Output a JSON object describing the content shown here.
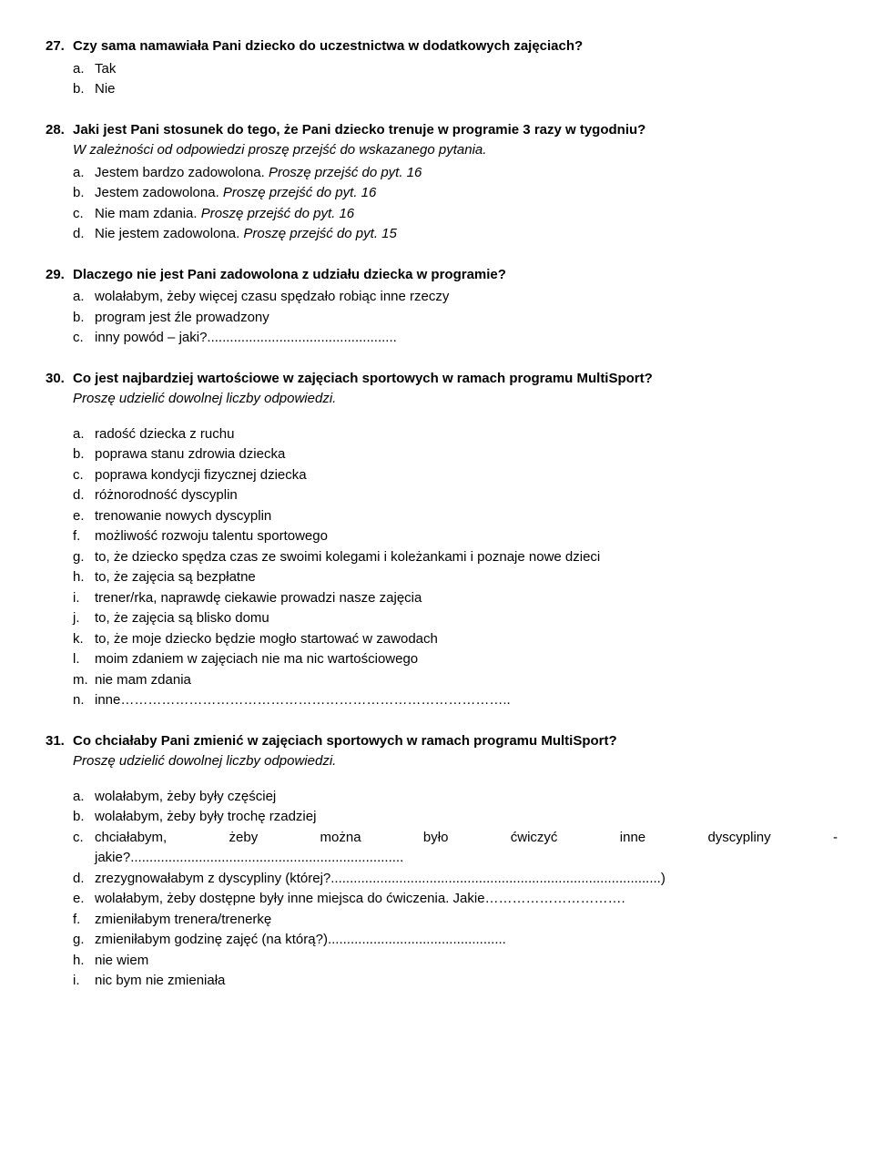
{
  "q27": {
    "num": "27.",
    "text": "Czy sama namawiała Pani dziecko do uczestnictwa w dodatkowych zajęciach?",
    "opts": [
      {
        "l": "a.",
        "t": "Tak"
      },
      {
        "l": "b.",
        "t": "Nie"
      }
    ]
  },
  "q28": {
    "num": "28.",
    "text": "Jaki jest Pani stosunek do tego, że Pani dziecko trenuje w programie 3 razy w tygodniu?",
    "instr": "W zależności od odpowiedzi proszę przejść do wskazanego pytania.",
    "opts": [
      {
        "l": "a.",
        "t": "Jestem bardzo zadowolona. ",
        "i": "Proszę przejść do pyt. 16"
      },
      {
        "l": "b.",
        "t": "Jestem zadowolona. ",
        "i": "Proszę przejść do pyt. 16"
      },
      {
        "l": "c.",
        "t": "Nie mam zdania. ",
        "i": "Proszę przejść do pyt. 16"
      },
      {
        "l": "d.",
        "t": "Nie jestem zadowolona. ",
        "i": "Proszę przejść do pyt. 15"
      }
    ]
  },
  "q29": {
    "num": "29.",
    "text": "Dlaczego nie jest Pani zadowolona z udziału dziecka w programie?",
    "opts": [
      {
        "l": "a.",
        "t": "wolałabym, żeby więcej czasu spędzało robiąc inne rzeczy"
      },
      {
        "l": "b.",
        "t": "program jest źle prowadzony"
      },
      {
        "l": "c.",
        "t": "inny powód – jaki?.................................................."
      }
    ]
  },
  "q30": {
    "num": "30.",
    "text": "Co jest najbardziej wartościowe w zajęciach sportowych w ramach programu MultiSport?",
    "instr": "Proszę udzielić dowolnej liczby odpowiedzi.",
    "opts": [
      {
        "l": "a.",
        "t": "radość dziecka z ruchu"
      },
      {
        "l": "b.",
        "t": "poprawa stanu zdrowia dziecka"
      },
      {
        "l": "c.",
        "t": "poprawa kondycji fizycznej dziecka"
      },
      {
        "l": "d.",
        "t": "różnorodność dyscyplin"
      },
      {
        "l": "e.",
        "t": "trenowanie nowych dyscyplin"
      },
      {
        "l": "f.",
        "t": "możliwość rozwoju talentu sportowego"
      },
      {
        "l": "g.",
        "t": "to, że dziecko spędza czas ze swoimi kolegami i koleżankami i poznaje nowe dzieci"
      },
      {
        "l": "h.",
        "t": "to, że zajęcia są bezpłatne"
      },
      {
        "l": "i.",
        "t": "trener/rka, naprawdę ciekawie prowadzi nasze zajęcia"
      },
      {
        "l": "j.",
        "t": "to, że zajęcia są blisko domu"
      },
      {
        "l": "k.",
        "t": "to, że moje dziecko będzie mogło startować w zawodach"
      },
      {
        "l": "l.",
        "t": "moim zdaniem w zajęciach nie ma nic wartościowego"
      },
      {
        "l": "m.",
        "t": "nie mam zdania"
      },
      {
        "l": "n.",
        "t": "inne………………………………………………………………………….."
      }
    ]
  },
  "q31": {
    "num": "31.",
    "text": "Co chciałaby Pani zmienić w zajęciach sportowych w ramach programu MultiSport?",
    "instr": "Proszę udzielić dowolnej liczby odpowiedzi.",
    "opts_simple": [
      {
        "l": "a.",
        "t": "wolałabym, żeby były częściej"
      },
      {
        "l": "b.",
        "t": "wolałabym, żeby były trochę rzadziej"
      }
    ],
    "opt_c": {
      "l": "c.",
      "w1": "chciałabym,",
      "w2": "żeby",
      "w3": "można",
      "w4": "było",
      "w5": "ćwiczyć",
      "w6": "inne",
      "w7": "dyscypliny",
      "w8": "-",
      "line2": "jakie?........................................................................"
    },
    "opt_d": {
      "l": "d.",
      "t": "zrezygnowałabym z dyscypliny (której?.......................................................................................)"
    },
    "opt_e": {
      "l": "e.",
      "t": "wolałabym, żeby dostępne były inne miejsca do ćwiczenia. Jakie…………………………."
    },
    "opt_f": {
      "l": "f.",
      "t": "zmieniłabym trenera/trenerkę"
    },
    "opt_g": {
      "l": "g.",
      "t": "zmieniłabym godzinę zajęć (na którą?)..............................................."
    },
    "opt_h": {
      "l": "h.",
      "t": "nie wiem"
    },
    "opt_i": {
      "l": "i.",
      "t": "nic bym nie zmieniała"
    }
  }
}
